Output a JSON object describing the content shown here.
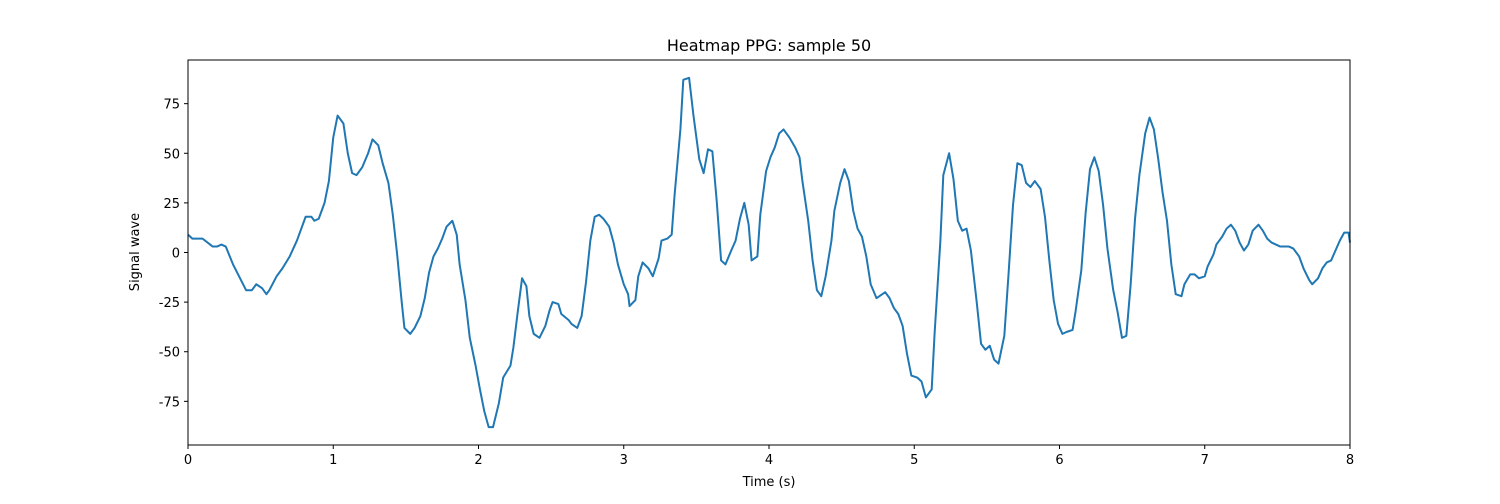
{
  "chart_data": {
    "type": "line",
    "title": "Heatmap PPG: sample 50",
    "x_label": "Time (s)",
    "y_label": "Signal wave",
    "color": "#1f77b4",
    "x": [
      0,
      0.03,
      0.1,
      0.17,
      0.2,
      0.23,
      0.26,
      0.31,
      0.4,
      0.44,
      0.47,
      0.51,
      0.54,
      0.56,
      0.61,
      0.65,
      0.7,
      0.75,
      0.81,
      0.85,
      0.87,
      0.9,
      0.94,
      0.97,
      1.0,
      1.03,
      1.07,
      1.1,
      1.13,
      1.16,
      1.2,
      1.24,
      1.27,
      1.31,
      1.34,
      1.38,
      1.41,
      1.44,
      1.47,
      1.49,
      1.53,
      1.56,
      1.6,
      1.63,
      1.66,
      1.69,
      1.72,
      1.75,
      1.78,
      1.82,
      1.85,
      1.87,
      1.91,
      1.94,
      1.98,
      2.01,
      2.04,
      2.07,
      2.1,
      2.14,
      2.17,
      2.22,
      2.24,
      2.27,
      2.3,
      2.33,
      2.35,
      2.38,
      2.42,
      2.46,
      2.49,
      2.51,
      2.55,
      2.57,
      2.62,
      2.64,
      2.68,
      2.71,
      2.74,
      2.77,
      2.8,
      2.83,
      2.86,
      2.9,
      2.93,
      2.96,
      3.0,
      3.03,
      3.04,
      3.08,
      3.1,
      3.13,
      3.17,
      3.2,
      3.24,
      3.26,
      3.3,
      3.33,
      3.35,
      3.39,
      3.41,
      3.45,
      3.48,
      3.52,
      3.55,
      3.58,
      3.61,
      3.64,
      3.67,
      3.7,
      3.74,
      3.77,
      3.8,
      3.83,
      3.86,
      3.88,
      3.92,
      3.94,
      3.98,
      4.01,
      4.04,
      4.07,
      4.1,
      4.14,
      4.18,
      4.21,
      4.23,
      4.27,
      4.3,
      4.33,
      4.36,
      4.39,
      4.43,
      4.45,
      4.49,
      4.52,
      4.55,
      4.58,
      4.61,
      4.64,
      4.67,
      4.7,
      4.74,
      4.76,
      4.8,
      4.83,
      4.86,
      4.89,
      4.92,
      4.95,
      4.98,
      5.02,
      5.05,
      5.08,
      5.12,
      5.14,
      5.18,
      5.2,
      5.24,
      5.27,
      5.3,
      5.33,
      5.36,
      5.39,
      5.43,
      5.46,
      5.49,
      5.52,
      5.55,
      5.58,
      5.62,
      5.65,
      5.68,
      5.71,
      5.74,
      5.77,
      5.8,
      5.83,
      5.87,
      5.9,
      5.93,
      5.96,
      5.99,
      6.02,
      6.05,
      6.09,
      6.11,
      6.15,
      6.18,
      6.21,
      6.24,
      6.27,
      6.3,
      6.33,
      6.37,
      6.4,
      6.43,
      6.46,
      6.49,
      6.52,
      6.55,
      6.59,
      6.62,
      6.65,
      6.68,
      6.71,
      6.74,
      6.77,
      6.8,
      6.84,
      6.86,
      6.9,
      6.93,
      6.96,
      7.0,
      7.02,
      7.06,
      7.08,
      7.12,
      7.15,
      7.18,
      7.21,
      7.24,
      7.27,
      7.3,
      7.33,
      7.37,
      7.4,
      7.43,
      7.46,
      7.49,
      7.52,
      7.55,
      7.58,
      7.61,
      7.65,
      7.68,
      7.72,
      7.74,
      7.78,
      7.81,
      7.84,
      7.87,
      7.9,
      7.93,
      7.96,
      7.99,
      8.0
    ],
    "values": [
      9,
      7,
      7,
      3,
      3,
      4,
      3,
      -6,
      -19,
      -19,
      -16,
      -18,
      -21,
      -19,
      -12,
      -8,
      -2,
      6,
      18,
      18,
      16,
      17,
      25,
      36,
      58,
      69,
      65,
      50,
      40,
      39,
      43,
      50,
      57,
      54,
      45,
      35,
      19,
      -1,
      -24,
      -38,
      -41,
      -38,
      -32,
      -23,
      -10,
      -2,
      2,
      7,
      13,
      16,
      9,
      -6,
      -24,
      -43,
      -57,
      -69,
      -80,
      -88,
      -88,
      -76,
      -63,
      -57,
      -48,
      -30,
      -13,
      -17,
      -32,
      -41,
      -43,
      -37,
      -29,
      -25,
      -26,
      -31,
      -34,
      -36,
      -38,
      -32,
      -15,
      6,
      18,
      19,
      17,
      13,
      5,
      -6,
      -16,
      -21,
      -27,
      -24,
      -12,
      -5,
      -8,
      -12,
      -3,
      6,
      7,
      9,
      29,
      62,
      87,
      88,
      69,
      47,
      40,
      52,
      51,
      26,
      -4,
      -6,
      1,
      6,
      17,
      25,
      14,
      -4,
      -2,
      19,
      41,
      48,
      53,
      60,
      62,
      58,
      53,
      48,
      36,
      16,
      -4,
      -19,
      -22,
      -12,
      6,
      21,
      35,
      42,
      36,
      21,
      12,
      8,
      -2,
      -16,
      -23,
      -22,
      -20,
      -23,
      -28,
      -31,
      -37,
      -51,
      -62,
      -63,
      -65,
      -73,
      -69,
      -41,
      6,
      39,
      50,
      37,
      16,
      11,
      12,
      1,
      -25,
      -46,
      -49,
      -47,
      -54,
      -56,
      -42,
      -10,
      24,
      45,
      44,
      35,
      33,
      36,
      32,
      18,
      -4,
      -24,
      -36,
      -41,
      -40,
      -39,
      -30,
      -9,
      20,
      42,
      48,
      41,
      24,
      2,
      -19,
      -30,
      -43,
      -42,
      -16,
      17,
      39,
      60,
      68,
      62,
      47,
      30,
      16,
      -6,
      -21,
      -22,
      -16,
      -11,
      -11,
      -13,
      -12,
      -7,
      -1,
      4,
      8,
      12,
      14,
      11,
      5,
      1,
      4,
      11,
      14,
      11,
      7,
      5,
      4,
      3,
      3,
      3,
      2,
      -2,
      -8,
      -14,
      -16,
      -13,
      -8,
      -5,
      -4,
      1,
      6,
      10,
      10,
      5
    ],
    "xlim": [
      0,
      8
    ],
    "xticks": [
      0,
      1,
      2,
      3,
      4,
      5,
      6,
      7,
      8
    ],
    "ylim": [
      -97,
      97
    ],
    "yticks": [
      -75,
      -50,
      -25,
      0,
      25,
      50,
      75
    ]
  }
}
